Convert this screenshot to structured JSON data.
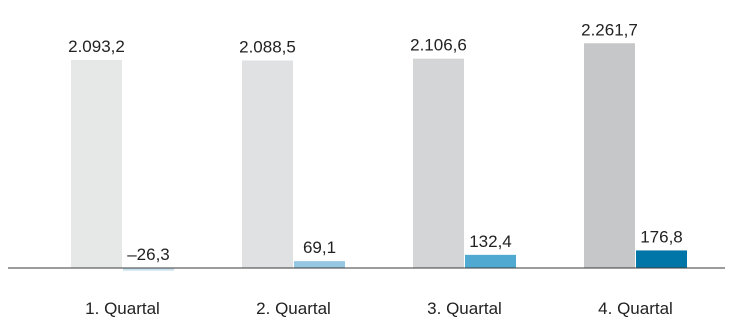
{
  "chart_data": {
    "type": "bar",
    "categories": [
      "1. Quartal",
      "2. Quartal",
      "3. Quartal",
      "4. Quartal"
    ],
    "series": [
      {
        "values": [
          2093.2,
          2088.5,
          2106.6,
          2261.7
        ],
        "labels": [
          "2.093,2",
          "2.088,5",
          "2.106,6",
          "2.261,7"
        ],
        "colors": [
          "#e6e8e8",
          "#dfe1e2",
          "#d3d5d6",
          "#c6c7c8"
        ]
      },
      {
        "values": [
          -26.3,
          69.1,
          132.4,
          176.8
        ],
        "labels": [
          "–26,3",
          "69,1",
          "132,4",
          "176,8"
        ],
        "colors": [
          "#c8e1ef",
          "#95c6e2",
          "#4fa9d1",
          "#0075a8"
        ]
      }
    ],
    "grid": false,
    "legend": "none"
  }
}
